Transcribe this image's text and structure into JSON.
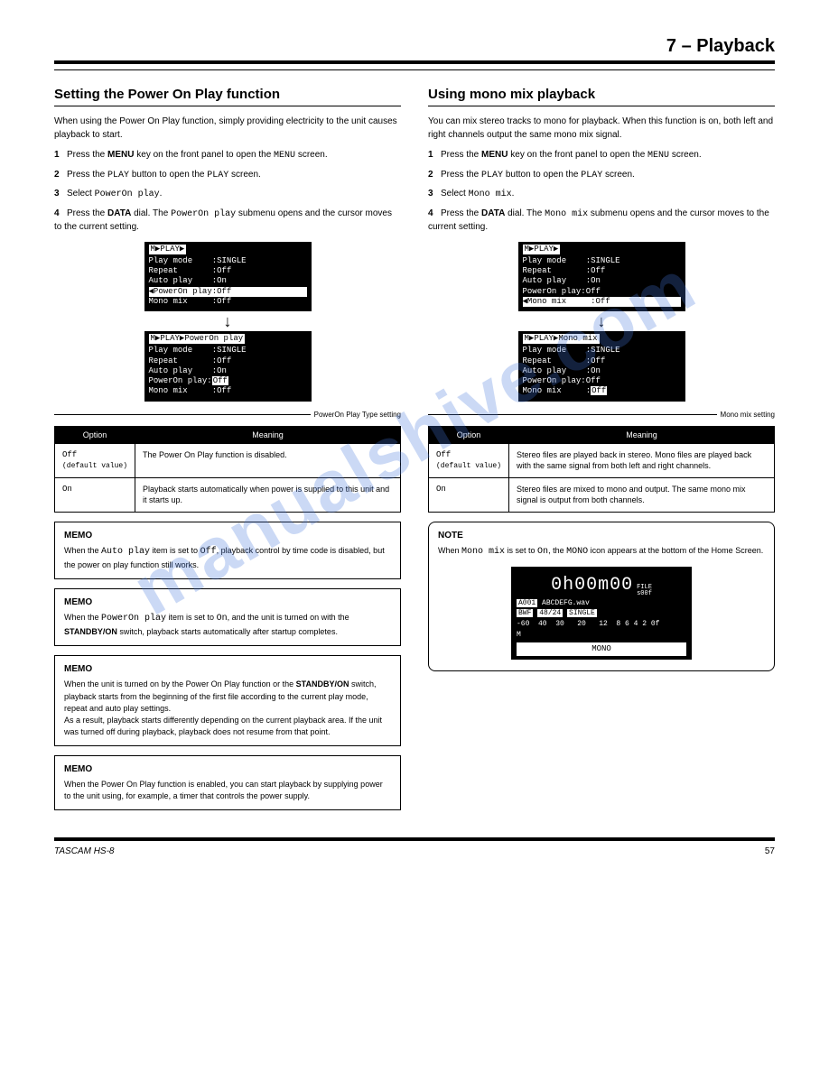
{
  "chapter_title": "7 – Playback",
  "watermark": "manualshive.com",
  "page_number": "57",
  "footer_model": "TASCAM HS-8",
  "left": {
    "section": "Setting the Power On Play function",
    "intro": "When using the Power On Play function, simply providing electricity to the unit causes playback to start.",
    "steps": {
      "s1": "Press the <b>MENU</b> key on the front panel to open the <span class='mono-kw'>MENU</span> screen.",
      "s2": "Press the <span class='mono-kw'>PLAY</span> button to open the <span class='mono-kw'>PLAY</span> screen.",
      "s3": "Select <span class='mono-kw'>PowerOn play</span>.",
      "s4": "Press the <b>DATA</b> dial. The <span class='mono-kw'>PowerOn play</span> submenu opens and the cursor moves to the current setting."
    },
    "lcd_top": {
      "title": "M▶PLAY▶",
      "rows": [
        "Play mode    :SINGLE",
        "Repeat       :Off",
        "Auto play    :On"
      ],
      "sel_row": "◀PowerOn play:Off",
      "rows_after": [
        "Mono mix     :Off"
      ]
    },
    "lcd_bottom": {
      "title": "M▶PLAY▶PowerOn play",
      "rows": [
        "Play mode    :SINGLE",
        "Repeat       :Off",
        "Auto play    :On",
        "PowerOn play:",
        "Mono mix     :Off"
      ],
      "value_hl": "Off"
    },
    "annotation": "PowerOn Play Type setting",
    "table": {
      "th1": "Option",
      "th2": "Meaning",
      "rows": [
        {
          "opt": "Off",
          "def": "(default value)",
          "meaning": "The Power On Play function is disabled."
        },
        {
          "opt": "On",
          "meaning": "Playback starts automatically when power is supplied to this unit and it starts up."
        }
      ]
    },
    "memo1": {
      "title": "MEMO",
      "text": "When the <span class='mono-kw'>Auto play</span> item is set to <span class='mono-kw'>Off</span>, playback control by time code is disabled, but the power on play function still works."
    },
    "memo2": {
      "title": "MEMO",
      "text": "When the <span class='mono-kw'>PowerOn play</span> item is set to <span class='mono-kw'>On</span>, and the unit is turned on with the <b>STANDBY/ON</b> switch, playback starts automatically after startup completes."
    },
    "memo3": {
      "title": "MEMO",
      "text": "When the unit is turned on by the Power On Play function or the <b>STANDBY/ON</b> switch, playback starts from the beginning of the first file according to the current play mode, repeat and auto play settings.<br>As a result, playback starts differently depending on the current playback area. If the unit was turned off during playback, playback does not resume from that point."
    },
    "memo4": {
      "title": "MEMO",
      "text": "When the Power On Play function is enabled, you can start playback by supplying power to the unit using, for example, a timer that controls the power supply."
    }
  },
  "right": {
    "section": "Using mono mix playback",
    "intro": "You can mix stereo tracks to mono for playback. When this function is on, both left and right channels output the same mono mix signal.",
    "steps": {
      "s1": "Press the <b>MENU</b> key on the front panel to open the <span class='mono-kw'>MENU</span> screen.",
      "s2": "Press the <span class='mono-kw'>PLAY</span> button to open the <span class='mono-kw'>PLAY</span> screen.",
      "s3": "Select <span class='mono-kw'>Mono mix</span>.",
      "s4": "Press the <b>DATA</b> dial. The <span class='mono-kw'>Mono mix</span> submenu opens and the cursor moves to the current setting."
    },
    "lcd_top": {
      "title": "M▶PLAY▶",
      "rows": [
        "Play mode    :SINGLE",
        "Repeat       :Off",
        "Auto play    :On",
        "PowerOn play:Off"
      ],
      "sel_row": "◀Mono mix     :Off"
    },
    "lcd_bottom": {
      "title": "M▶PLAY▶Mono mix",
      "rows": [
        "Play mode    :SINGLE",
        "Repeat       :Off",
        "Auto play    :On",
        "PowerOn play:Off",
        "Mono mix     :"
      ],
      "value_hl": "Off"
    },
    "annotation": "Mono mix setting",
    "table": {
      "th1": "Option",
      "th2": "Meaning",
      "rows": [
        {
          "opt": "Off",
          "def": "(default value)",
          "meaning": "Stereo files are played back in stereo. Mono files are played back with the same signal from both left and right channels."
        },
        {
          "opt": "On",
          "meaning": "Stereo files are mixed to mono and output. The same mono mix signal is output from both channels."
        }
      ]
    },
    "note": {
      "title": "NOTE",
      "intro": "When <span class='mono-kw'>Mono mix</span> is set to <span class='mono-kw'>On</span>, the <span class='mono-kw'>MONO</span> icon appears at the bottom of the Home Screen.",
      "home": {
        "time": "0h00m00",
        "side1": "FILE",
        "side2": "s00f",
        "file_row_a": "A001",
        "file_row_b": "ABCDEFG.wav",
        "info_a": "BWF",
        "info_b": "48/24",
        "info_c": "SINGLE",
        "meter": "-60  40  30   20   12  8 6 4 2 0f",
        "m": "M",
        "mono": "MONO"
      }
    }
  }
}
